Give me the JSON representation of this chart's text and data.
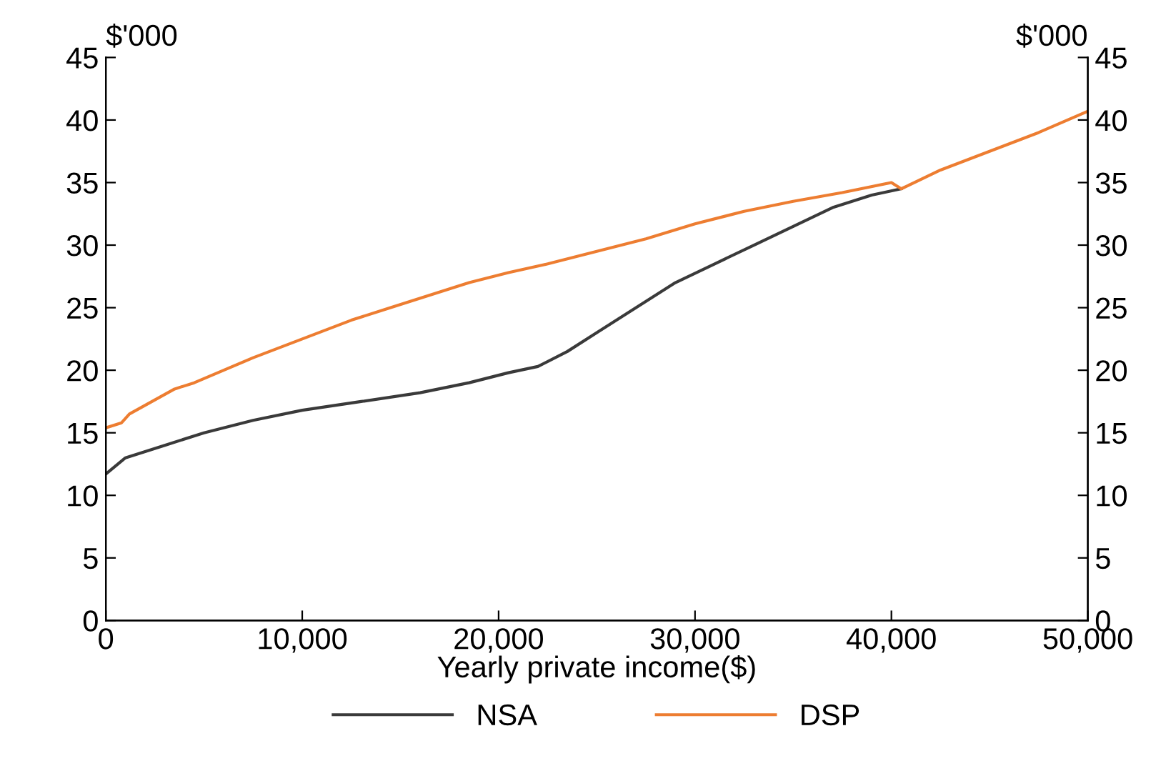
{
  "chart_data": {
    "type": "line",
    "xlabel": "Yearly private income($)",
    "ylabel": "$'000",
    "y2label": "$'000",
    "xlim": [
      0,
      50000
    ],
    "xticks": [
      0,
      {
        "value": 10000,
        "label": "10,000"
      },
      {
        "value": 20000,
        "label": "20,000"
      },
      {
        "value": 30000,
        "label": "30,000"
      },
      {
        "value": 40000,
        "label": "40,000"
      },
      {
        "value": 50000,
        "label": "50,000"
      }
    ],
    "ylim": [
      0,
      45
    ],
    "yticks": [
      0,
      5,
      10,
      15,
      20,
      25,
      30,
      35,
      40,
      45
    ],
    "y2lim": [
      0,
      45
    ],
    "y2ticks": [
      0,
      5,
      10,
      15,
      20,
      25,
      30,
      35,
      40,
      45
    ],
    "grid": false,
    "legend": "bottom",
    "series": [
      {
        "name": "NSA",
        "color": "#3a3a3a",
        "x": [
          0,
          1000,
          3000,
          5000,
          7500,
          10000,
          13000,
          16000,
          18500,
          20500,
          22000,
          23500,
          25000,
          27000,
          29000,
          31000,
          33000,
          35000,
          37000,
          39000,
          40500
        ],
        "values": [
          11.7,
          13,
          14,
          15,
          16,
          16.8,
          17.5,
          18.2,
          19,
          19.8,
          20.3,
          21.5,
          23,
          25,
          27,
          28.5,
          30,
          31.5,
          33,
          34,
          34.5
        ]
      },
      {
        "name": "DSP",
        "color": "#ed7d31",
        "x": [
          0,
          800,
          1200,
          3500,
          4500,
          6000,
          7500,
          10000,
          12500,
          14500,
          16500,
          18500,
          20500,
          22500,
          25000,
          27500,
          30000,
          32500,
          35000,
          37500,
          40000,
          40500,
          42500,
          45000,
          47500,
          50000
        ],
        "values": [
          15.4,
          15.8,
          16.5,
          18.5,
          19,
          20,
          21,
          22.5,
          24,
          25,
          26,
          27,
          27.8,
          28.5,
          29.5,
          30.5,
          31.7,
          32.7,
          33.5,
          34.2,
          35,
          34.5,
          36,
          37.5,
          39,
          40.7
        ]
      }
    ]
  }
}
